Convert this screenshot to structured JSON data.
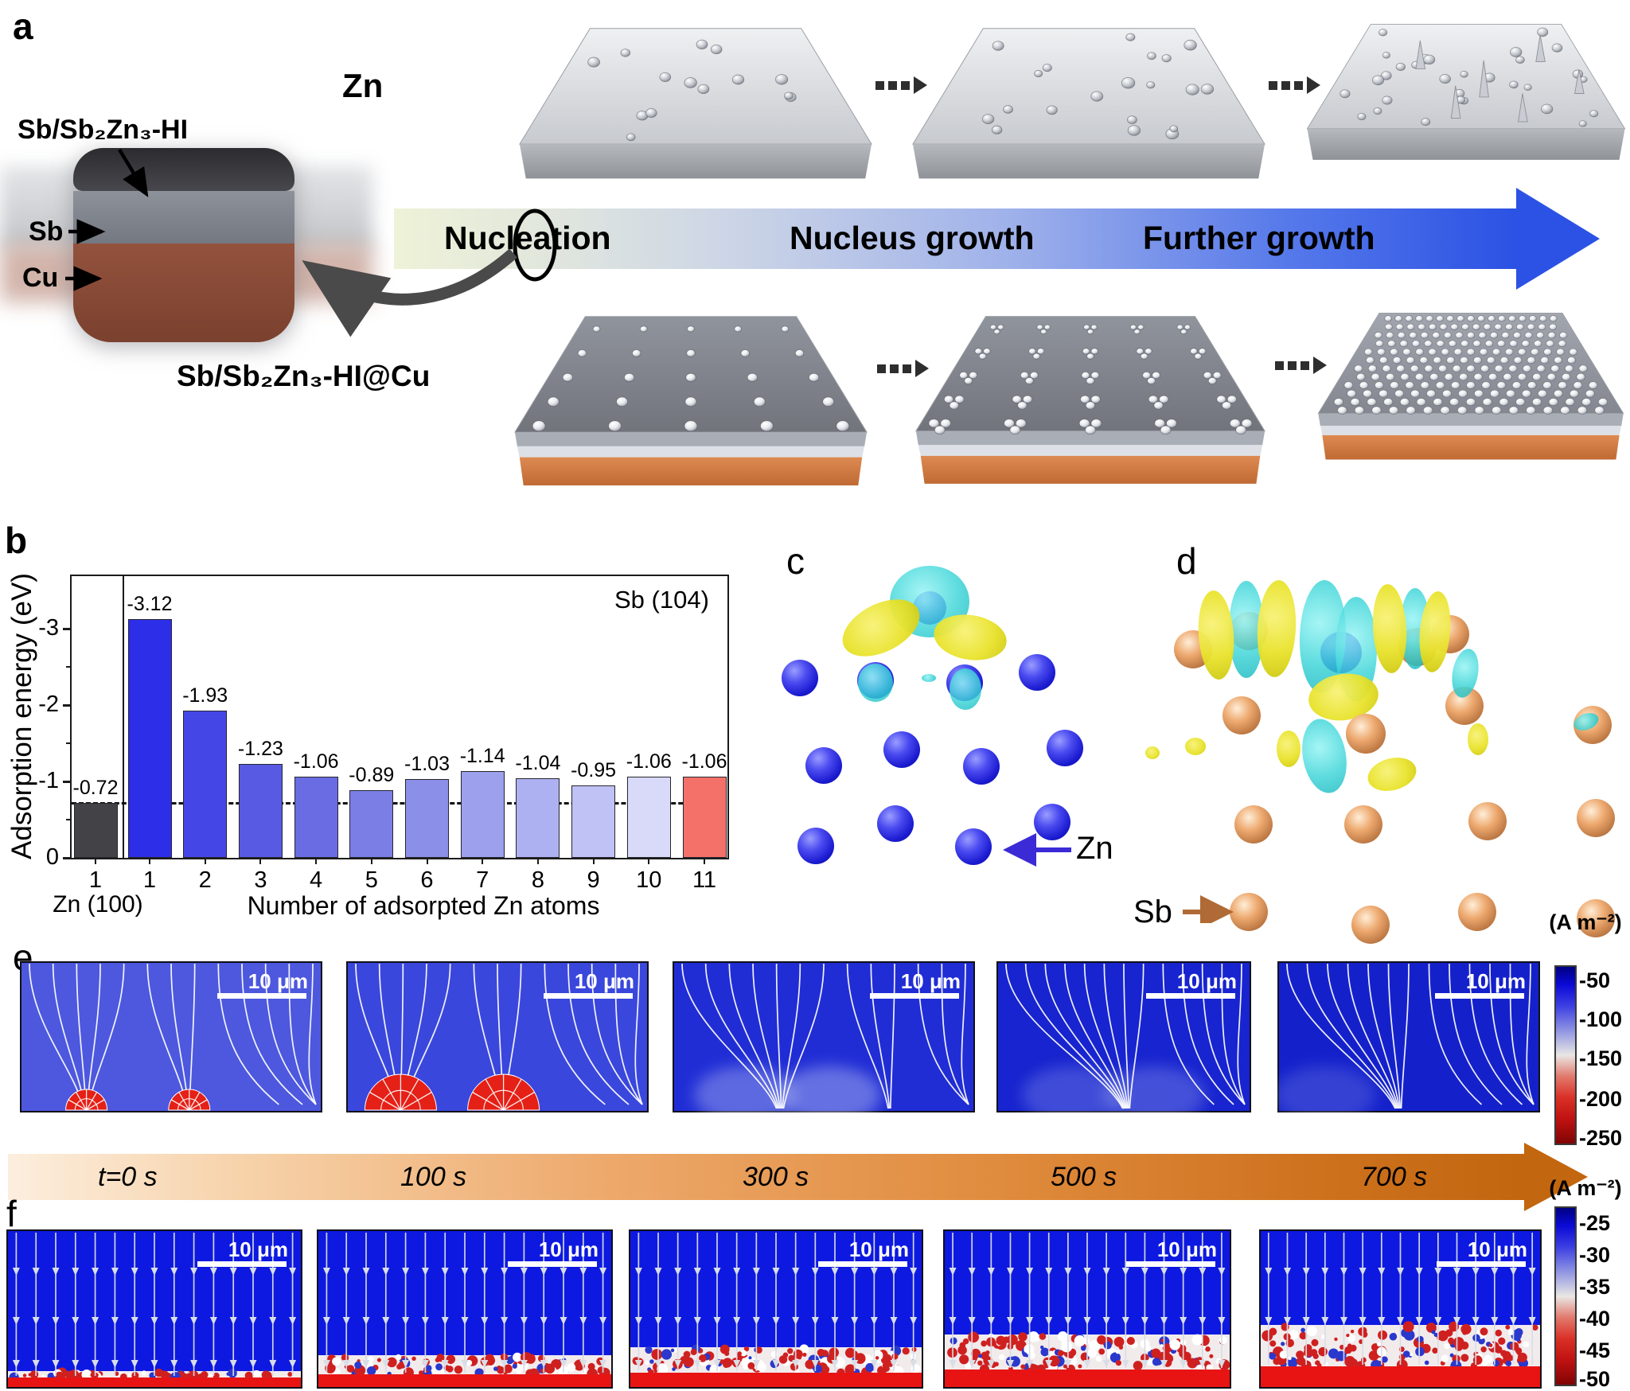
{
  "panel_labels": {
    "a": "a",
    "b": "b",
    "c": "c",
    "d": "d",
    "e": "e",
    "f": "f"
  },
  "panel_a": {
    "zn_row_label": "Zn",
    "layer_label_top": "Sb/Sb₂Zn₃-HI",
    "layer_label_sb": "Sb",
    "layer_label_cu": "Cu",
    "substrate_row_label": "Sb/Sb₂Zn₃-HI@Cu",
    "stages": [
      "Nucleation",
      "Nucleus growth",
      "Further growth"
    ]
  },
  "chart_data": {
    "type": "bar",
    "title": "",
    "ylabel": "Adsorption energy (eV)",
    "xlabel": "Number of adsorpted Zn atoms",
    "annotation": "Sb (104)",
    "reference": {
      "surface_label": "Zn (100)",
      "category": "1",
      "value": -0.72,
      "color": "#434347"
    },
    "categories": [
      "1",
      "2",
      "3",
      "4",
      "5",
      "6",
      "7",
      "8",
      "9",
      "10",
      "11"
    ],
    "values": [
      -3.12,
      -1.93,
      -1.23,
      -1.06,
      -0.89,
      -1.03,
      -1.14,
      -1.04,
      -0.95,
      -1.06,
      -1.06
    ],
    "bar_colors": [
      "#2d2fe8",
      "#4447e6",
      "#585ae4",
      "#6a6ce3",
      "#7b7ee4",
      "#8c8fe8",
      "#9da0ec",
      "#aeb1f1",
      "#c0c2f5",
      "#d9daf9",
      "#f4716a"
    ],
    "dashed_reference_line": -0.72,
    "yticks": [
      0,
      -1,
      -2,
      -3
    ],
    "ylim": [
      0,
      -3.6
    ],
    "grid": false,
    "legend_position": "none"
  },
  "panel_c": {
    "atom_label": "Zn"
  },
  "panel_d": {
    "atom_label": "Sb"
  },
  "panel_e": {
    "scale_bar": "10 μm",
    "colorbar_title": "(A m⁻²)",
    "colorbar_ticks": [
      "-50",
      "-100",
      "-150",
      "-200",
      "-250"
    ]
  },
  "timeline": {
    "labels": [
      "t=0 s",
      "100 s",
      "300 s",
      "500 s",
      "700 s"
    ]
  },
  "panel_f": {
    "scale_bar": "10 μm",
    "colorbar_title": "(A m⁻²)",
    "colorbar_ticks": [
      "-25",
      "-30",
      "-35",
      "-40",
      "-45",
      "-50"
    ]
  }
}
